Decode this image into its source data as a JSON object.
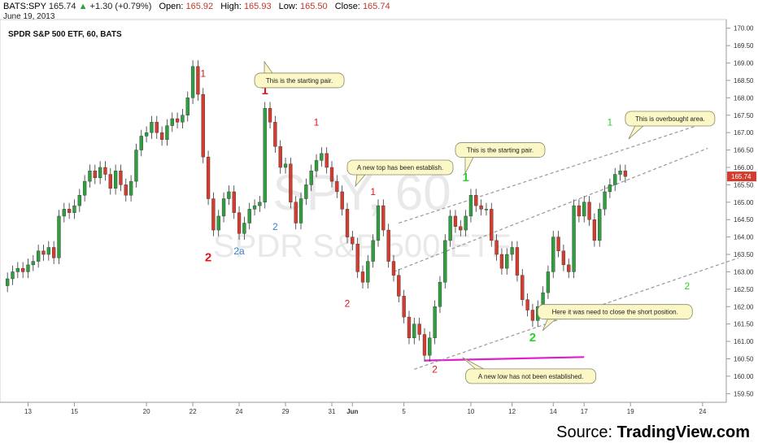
{
  "header": {
    "symbol": "BATS:SPY",
    "last": "165.74",
    "change": "+1.30 (+0.79%)",
    "open_label": "Open:",
    "open": "165.92",
    "high_label": "High:",
    "high": "165.93",
    "low_label": "Low:",
    "low": "165.50",
    "close_label": "Close:",
    "close": "165.74",
    "date": "June 19, 2013"
  },
  "source": {
    "prefix": "Source: ",
    "name": "TradingView.com"
  },
  "colors": {
    "up": "#2e9e3e",
    "down": "#d33c2f",
    "wave_red": "#e0141e",
    "wave_green": "#2fd12f",
    "wave_blue": "#3a7fd0",
    "support": "#e020c8",
    "channel": "#999999",
    "callout_fill": "#fbf7c6",
    "callout_stroke": "#888866"
  },
  "chart_data": {
    "type": "candlestick",
    "title": "SPDR S&P 500 ETF, 60, BATS",
    "watermark": [
      "SPY, 60",
      "SPDR S&P 500 ETF"
    ],
    "last_price_label": "165.74",
    "ylim": [
      159.25,
      170.25
    ],
    "y_ticks": [
      "159.50",
      "160.00",
      "160.50",
      "161.00",
      "161.50",
      "162.00",
      "162.50",
      "163.00",
      "163.50",
      "164.00",
      "164.50",
      "165.00",
      "165.50",
      "166.00",
      "166.50",
      "167.00",
      "167.50",
      "168.00",
      "168.50",
      "169.00",
      "169.50",
      "170.00"
    ],
    "x_ticks": [
      {
        "label": "13",
        "i": 4
      },
      {
        "label": "15",
        "i": 13
      },
      {
        "label": "20",
        "i": 27
      },
      {
        "label": "22",
        "i": 36
      },
      {
        "label": "24",
        "i": 45
      },
      {
        "label": "29",
        "i": 54
      },
      {
        "label": "31",
        "i": 63
      },
      {
        "label": "Jun",
        "i": 67
      },
      {
        "label": "5",
        "i": 77
      },
      {
        "label": "10",
        "i": 90
      },
      {
        "label": "12",
        "i": 98
      },
      {
        "label": "14",
        "i": 106
      },
      {
        "label": "17",
        "i": 112
      },
      {
        "label": "19",
        "i": 121
      },
      {
        "label": "24",
        "i": 135
      }
    ],
    "closes": [
      162.8,
      163.0,
      163.1,
      163.0,
      163.2,
      163.3,
      163.6,
      163.5,
      163.7,
      163.4,
      164.6,
      164.8,
      164.7,
      164.9,
      165.2,
      165.6,
      165.9,
      165.7,
      166.0,
      165.8,
      165.4,
      165.9,
      165.5,
      165.2,
      165.6,
      166.5,
      166.9,
      167.0,
      167.3,
      167.0,
      166.8,
      167.2,
      167.4,
      167.3,
      167.5,
      168.0,
      168.9,
      168.1,
      166.3,
      165.1,
      164.2,
      164.6,
      165.1,
      165.3,
      164.7,
      164.1,
      164.4,
      164.8,
      164.9,
      165.0,
      167.7,
      167.3,
      166.6,
      166.0,
      166.1,
      165.0,
      164.4,
      165.1,
      165.5,
      165.9,
      166.2,
      166.4,
      166.0,
      165.6,
      165.3,
      164.8,
      164.0,
      163.8,
      163.0,
      162.7,
      163.3,
      163.9,
      164.9,
      164.2,
      163.3,
      162.9,
      162.3,
      161.7,
      161.1,
      161.5,
      161.2,
      160.6,
      161.1,
      162.0,
      162.7,
      163.9,
      164.6,
      164.3,
      164.2,
      164.6,
      165.2,
      164.9,
      164.8,
      164.8,
      163.9,
      163.5,
      163.1,
      163.5,
      163.7,
      162.9,
      162.2,
      161.9,
      161.6,
      162.0,
      162.4,
      163.0,
      164.0,
      163.6,
      163.2,
      163.0,
      164.9,
      164.6,
      165.0,
      164.5,
      163.9,
      164.8,
      165.3,
      165.5,
      165.8,
      165.9,
      165.74
    ],
    "annotations": [
      {
        "label": "1",
        "i": 38,
        "price": 168.6,
        "color": "wave_red",
        "bold": false
      },
      {
        "label": "2",
        "i": 39,
        "price": 163.3,
        "color": "wave_red",
        "bold": true
      },
      {
        "label": "2a",
        "i": 45,
        "price": 163.5,
        "color": "wave_blue",
        "bold": false
      },
      {
        "label": "1",
        "i": 50,
        "price": 168.1,
        "color": "wave_red",
        "bold": true
      },
      {
        "label": "2",
        "i": 52,
        "price": 164.2,
        "color": "wave_blue",
        "bold": false
      },
      {
        "label": "1",
        "i": 60,
        "price": 167.2,
        "color": "wave_red",
        "bold": false
      },
      {
        "label": "1",
        "i": 71,
        "price": 165.2,
        "color": "wave_red",
        "bold": false
      },
      {
        "label": "2",
        "i": 66,
        "price": 162.0,
        "color": "wave_red",
        "bold": false
      },
      {
        "label": "2",
        "i": 83,
        "price": 160.1,
        "color": "wave_red",
        "bold": false
      },
      {
        "label": "1",
        "i": 89,
        "price": 165.6,
        "color": "wave_green",
        "bold": true
      },
      {
        "label": "2",
        "i": 102,
        "price": 161.0,
        "color": "wave_green",
        "bold": true
      },
      {
        "label": "1",
        "i": 117,
        "price": 167.2,
        "color": "wave_green",
        "bold": false
      },
      {
        "label": "2",
        "i": 132,
        "price": 162.5,
        "color": "wave_green",
        "bold": false
      }
    ],
    "callouts": [
      {
        "text": "This is the starting pair.",
        "i": 48,
        "price": 168.5,
        "width": 110,
        "tail": [
          -4,
          -14
        ]
      },
      {
        "text": "A new top has been establish.",
        "i": 66,
        "price": 166.0,
        "width": 130,
        "tail": [
          -6,
          14
        ]
      },
      {
        "text": "This is the starting pair.",
        "i": 87,
        "price": 166.5,
        "width": 110,
        "tail": [
          -4,
          20
        ]
      },
      {
        "text": "This is overbought area.",
        "i": 120,
        "price": 167.4,
        "width": 110,
        "tail": [
          -12,
          16
        ]
      },
      {
        "text": "Here it was need to close the short position.",
        "i": 103,
        "price": 161.85,
        "width": 190,
        "tail": [
          -10,
          14
        ]
      },
      {
        "text": "A new low has not been established.",
        "i": 89,
        "price": 160.0,
        "width": 160,
        "tail": [
          -20,
          -14
        ]
      }
    ],
    "lines": [
      {
        "name": "support-line",
        "i1": 81,
        "p1": 160.45,
        "i2": 112,
        "p2": 160.55,
        "color": "support",
        "dashed": false
      },
      {
        "name": "channel-top",
        "i1": 76,
        "p1": 164.4,
        "i2": 136,
        "p2": 167.3,
        "color": "channel",
        "dashed": true
      },
      {
        "name": "channel-mid",
        "i1": 75,
        "p1": 163.0,
        "i2": 136,
        "p2": 166.55,
        "color": "channel",
        "dashed": true
      },
      {
        "name": "channel-low",
        "i1": 79,
        "p1": 160.2,
        "i2": 142,
        "p2": 163.4,
        "color": "channel",
        "dashed": true
      }
    ]
  }
}
